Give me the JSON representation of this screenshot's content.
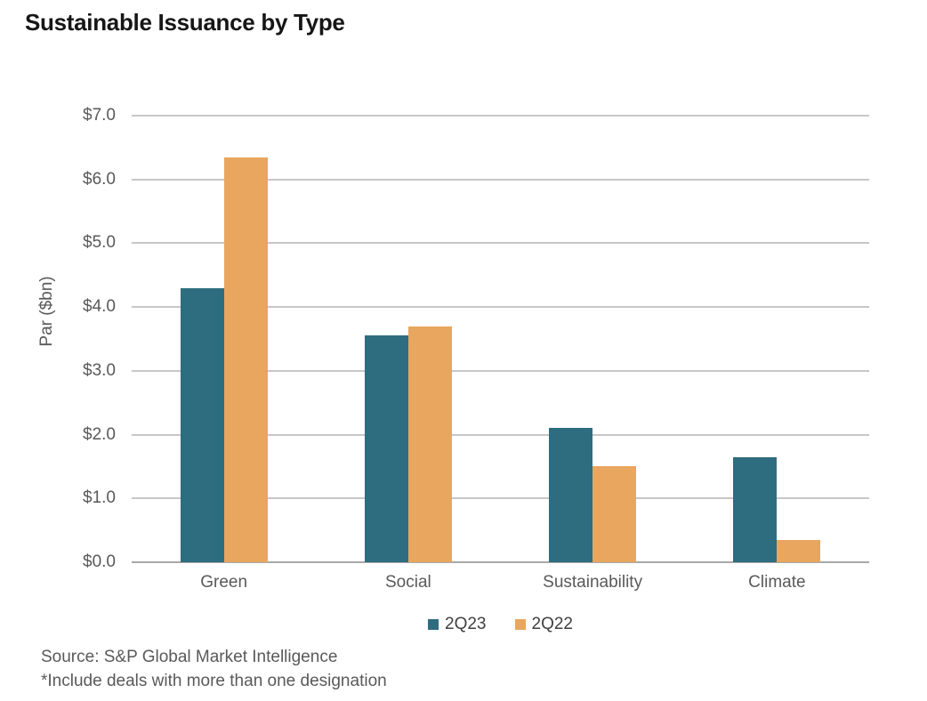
{
  "title": "Sustainable Issuance by Type",
  "chart_data": {
    "type": "bar",
    "title": "Sustainable Issuance by Type",
    "categories": [
      "Green",
      "Social",
      "Sustainability",
      "Climate"
    ],
    "series": [
      {
        "name": "2Q23",
        "color": "#2E6C80",
        "values": [
          4.3,
          3.55,
          2.1,
          1.65
        ]
      },
      {
        "name": "2Q22",
        "color": "#E8A65E",
        "values": [
          6.35,
          3.7,
          1.5,
          0.35
        ]
      }
    ],
    "xlabel": "",
    "ylabel": "Par ($bn)",
    "ylim": [
      0,
      7
    ],
    "ytick_step": 1,
    "ytick_labels": [
      "$0.0",
      "$1.0",
      "$2.0",
      "$3.0",
      "$4.0",
      "$5.0",
      "$6.0",
      "$7.0"
    ],
    "grid": true,
    "legend_position": "bottom"
  },
  "footer": {
    "source": "Source: S&P Global Market Intelligence",
    "note": "*Include deals with more than one designation"
  },
  "colors": {
    "series_2q23": "#2E6C80",
    "series_2q22": "#E8A65E",
    "gridline": "#C7C7C7",
    "axis_baseline": "#A8A8A8",
    "axis_text": "#595959",
    "legend_text": "#404040",
    "title_text": "#161616",
    "background": "#FFFFFF"
  }
}
